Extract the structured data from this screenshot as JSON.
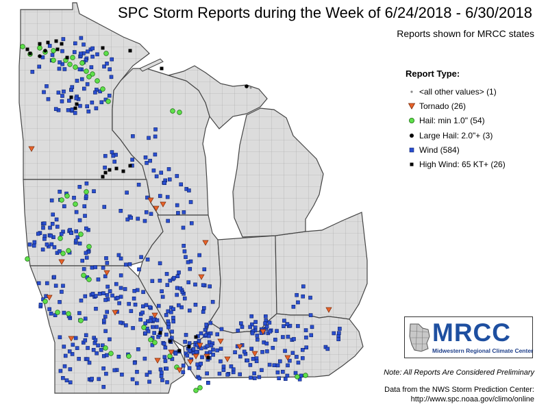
{
  "title": "SPC Storm Reports during the Week of 6/24/2018 - 6/30/2018",
  "subtitle": "Reports shown for MRCC states",
  "legend": {
    "title": "Report Type:",
    "items": [
      {
        "label": "<all other values> (1)",
        "symbol": "dot",
        "color": "#888888"
      },
      {
        "label": "Tornado (26)",
        "symbol": "triangle-down",
        "color": "#e8632a"
      },
      {
        "label": "Hail: min 1.0\" (54)",
        "symbol": "circle",
        "color": "#5ee04a"
      },
      {
        "label": "Large Hail: 2.0\"+ (3)",
        "symbol": "circle",
        "color": "#000000"
      },
      {
        "label": "Wind (584)",
        "symbol": "square",
        "color": "#2a4fd0"
      },
      {
        "label": "High Wind: 65 KT+ (26)",
        "symbol": "square",
        "color": "#000000"
      }
    ]
  },
  "logo": {
    "name": "MRCC",
    "full_name": "Midwestern Regional Climate Center"
  },
  "note": "Note: All Reports Are Considered Preliminary",
  "credit_line1": "Data from the NWS Storm Prediction Center:",
  "credit_line2": "http://www.spc.noaa.gov/climo/online",
  "colors": {
    "land": "#dcdcdc",
    "water": "#ffffff",
    "county_line": "#9a9a9a",
    "state_line": "#444444"
  }
}
